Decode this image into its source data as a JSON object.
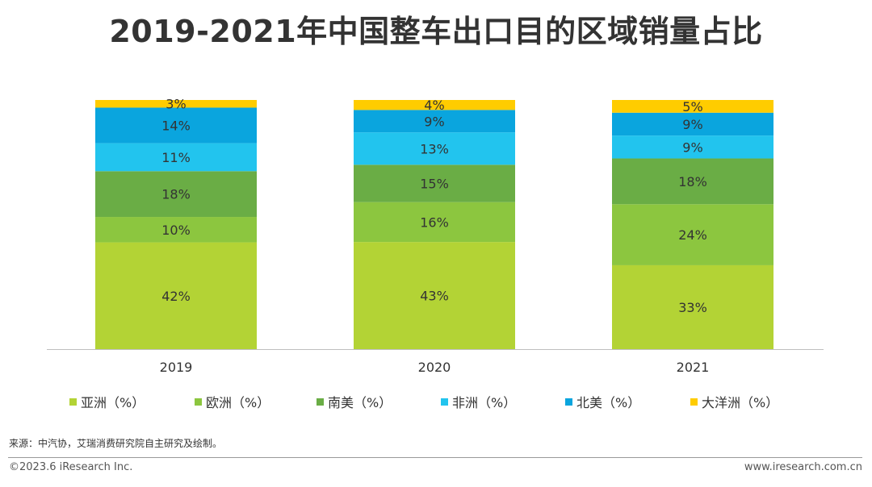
{
  "title": "2019-2021年中国整车出口目的区域销量占比",
  "source": "来源：中汽协，艾瑞消费研究院自主研究及绘制。",
  "footer": {
    "copyright": "©2023.6 iResearch Inc.",
    "website": "www.iresearch.com.cn"
  },
  "colors": {
    "asia": "#b3d335",
    "europe": "#8cc63f",
    "south_america": "#6aad45",
    "africa": "#22c4ee",
    "north_america": "#0aa5de",
    "oceania": "#ffcc00"
  },
  "chart_data": {
    "type": "bar",
    "stacked": true,
    "title": "2019-2021年中国整车出口目的区域销量占比",
    "categories": [
      "2019",
      "2020",
      "2021"
    ],
    "series": [
      {
        "name": "亚洲（%）",
        "legend_label": "亚洲（%）",
        "color_key": "asia",
        "values": [
          42,
          43,
          33
        ],
        "labels": [
          "42%",
          "43%",
          "33%"
        ]
      },
      {
        "name": "欧洲（%）",
        "legend_label": "欧洲（%）",
        "color_key": "europe",
        "values": [
          10,
          16,
          24
        ],
        "labels": [
          "10%",
          "16%",
          "24%"
        ]
      },
      {
        "name": "南美（%）",
        "legend_label": "南美（%）",
        "color_key": "south_america",
        "values": [
          18,
          15,
          18
        ],
        "labels": [
          "18%",
          "15%",
          "18%"
        ]
      },
      {
        "name": "非洲（%）",
        "legend_label": "非洲（%）",
        "color_key": "africa",
        "values": [
          11,
          13,
          9
        ],
        "labels": [
          "11%",
          "13%",
          "9%"
        ]
      },
      {
        "name": "北美（%）",
        "legend_label": "北美（%）",
        "color_key": "north_america",
        "values": [
          14,
          9,
          9
        ],
        "labels": [
          "14%",
          "9%",
          "9%"
        ]
      },
      {
        "name": "大洋洲（%）",
        "legend_label": "大洋洲（%）",
        "color_key": "oceania",
        "values": [
          3,
          4,
          5
        ],
        "labels": [
          "3%",
          "4%",
          "5%"
        ]
      }
    ],
    "xlabel": "",
    "ylabel": "",
    "grid": false,
    "legend_placement": "bottom"
  }
}
